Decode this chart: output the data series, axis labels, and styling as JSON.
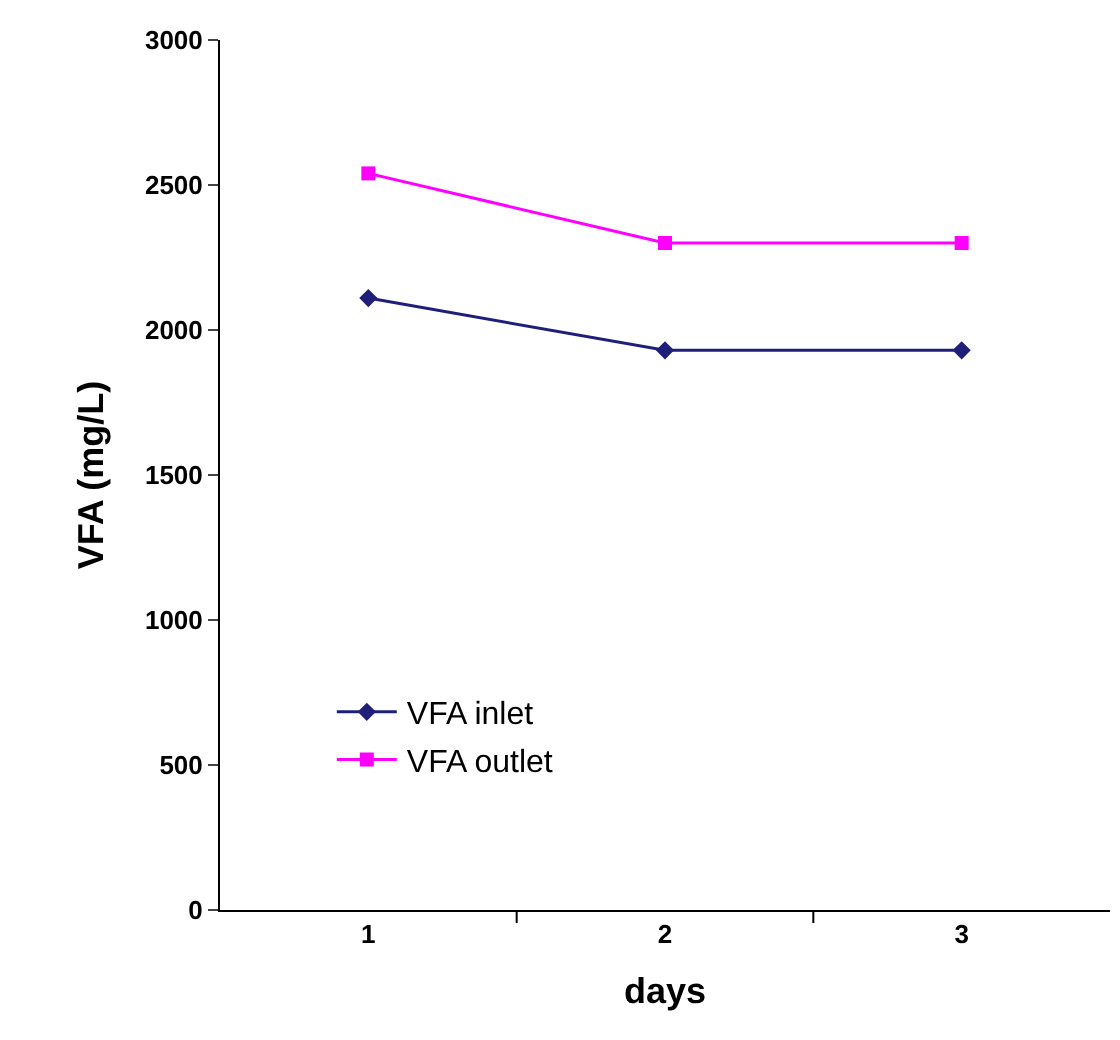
{
  "chart_data": {
    "type": "line",
    "xlabel": "days",
    "ylabel": "VFA (mg/L)",
    "categories": [
      "1",
      "2",
      "3"
    ],
    "series": [
      {
        "name": "VFA inlet",
        "color": "#1f1f7a",
        "marker": "diamond",
        "values": [
          2110,
          1930,
          1930
        ]
      },
      {
        "name": "VFA outlet",
        "color": "#ff00ff",
        "marker": "square",
        "values": [
          2540,
          2300,
          2300
        ]
      }
    ],
    "ylim": [
      0,
      3000
    ],
    "yticks": [
      0,
      500,
      1000,
      1500,
      2000,
      2500,
      3000
    ],
    "legend": "bottom left"
  }
}
